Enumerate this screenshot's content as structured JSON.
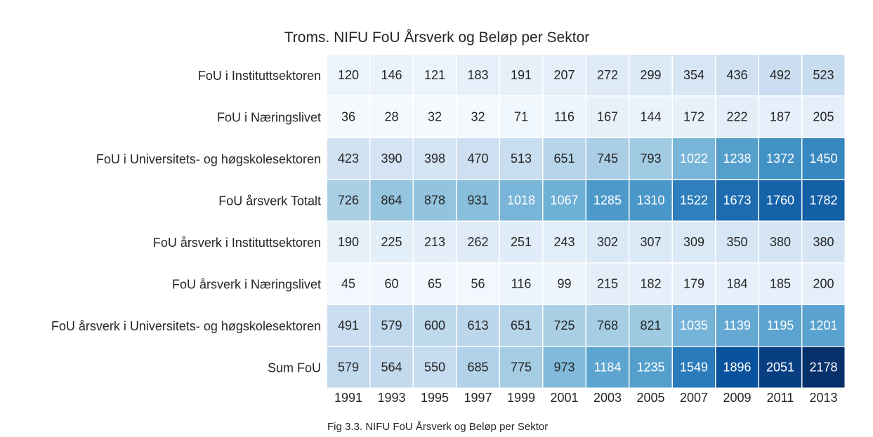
{
  "chart_data": {
    "type": "heatmap",
    "title": "Troms. NIFU FoU Årsverk og Beløp per Sektor",
    "caption": "Fig 3.3. NIFU FoU Årsverk og Beløp per Sektor",
    "xlabel": "",
    "ylabel": "",
    "colormap": "Blues",
    "color_range": [
      0,
      2178
    ],
    "colors": {
      "low": "#f7fbff",
      "high": "#08306b",
      "text_dark": "#262626",
      "text_light": "#ffffff"
    },
    "x": [
      "1991",
      "1993",
      "1995",
      "1997",
      "1999",
      "2001",
      "2003",
      "2005",
      "2007",
      "2009",
      "2011",
      "2013"
    ],
    "rows": [
      {
        "label": "FoU i Instituttsektoren",
        "values": [
          120,
          146,
          121,
          183,
          191,
          207,
          272,
          299,
          354,
          436,
          492,
          523
        ]
      },
      {
        "label": "FoU i Næringslivet",
        "values": [
          36,
          28,
          32,
          32,
          71,
          116,
          167,
          144,
          172,
          222,
          187,
          205
        ]
      },
      {
        "label": "FoU i Universitets- og høgskolesektoren",
        "values": [
          423,
          390,
          398,
          470,
          513,
          651,
          745,
          793,
          1022,
          1238,
          1372,
          1450
        ]
      },
      {
        "label": "FoU årsverk Totalt",
        "values": [
          726,
          864,
          878,
          931,
          1018,
          1067,
          1285,
          1310,
          1522,
          1673,
          1760,
          1782
        ]
      },
      {
        "label": "FoU årsverk i Instituttsektoren",
        "values": [
          190,
          225,
          213,
          262,
          251,
          243,
          302,
          307,
          309,
          350,
          380,
          380
        ]
      },
      {
        "label": "FoU årsverk i Næringslivet",
        "values": [
          45,
          60,
          65,
          56,
          116,
          99,
          215,
          182,
          179,
          184,
          185,
          200
        ]
      },
      {
        "label": "FoU årsverk i Universitets- og høgskolesektoren",
        "values": [
          491,
          579,
          600,
          613,
          651,
          725,
          768,
          821,
          1035,
          1139,
          1195,
          1201
        ]
      },
      {
        "label": "Sum FoU",
        "values": [
          579,
          564,
          550,
          685,
          775,
          973,
          1184,
          1235,
          1549,
          1896,
          2051,
          2178
        ]
      }
    ]
  }
}
